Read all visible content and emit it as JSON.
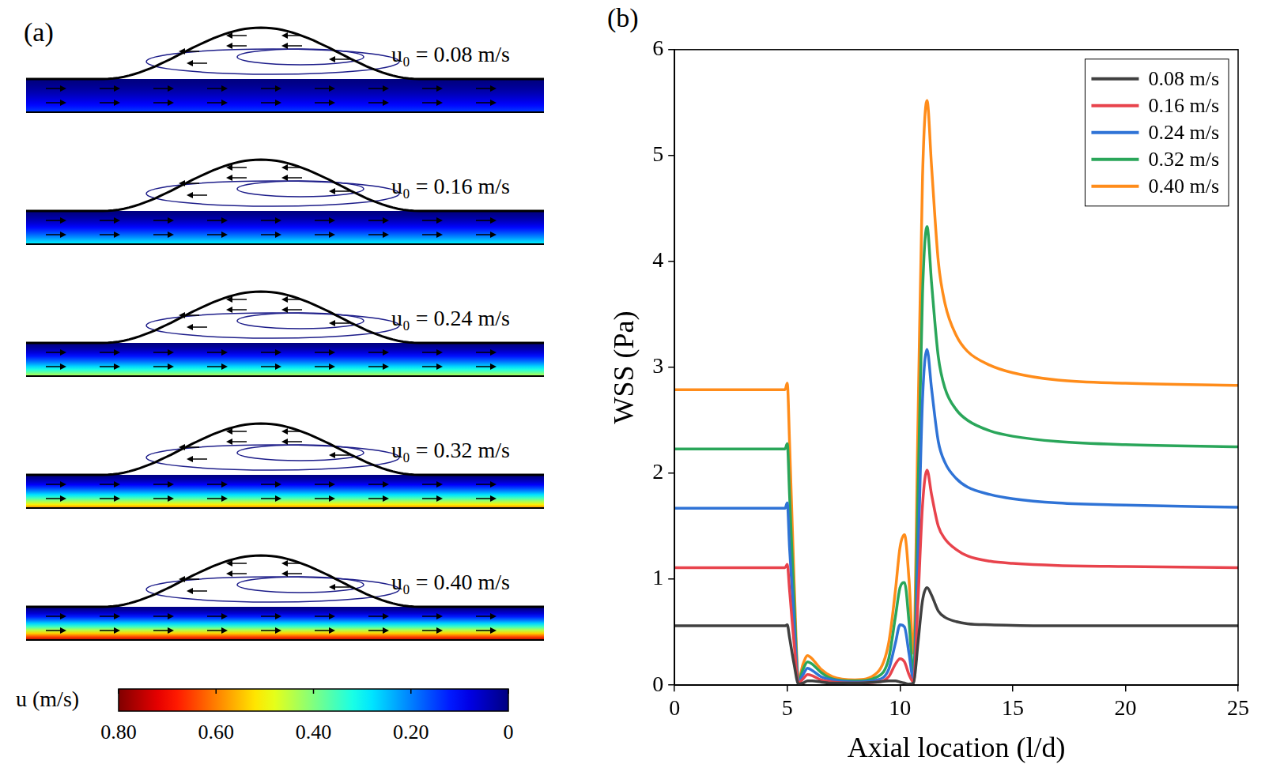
{
  "chart_data": {
    "type": "line",
    "panel": "(b)",
    "x_label": "Axial location (l/d)",
    "y_label": "WSS (Pa)",
    "x": [
      0,
      4.9,
      5.0,
      5.1,
      5.3,
      5.5,
      5.7,
      5.9,
      6.1,
      6.5,
      7,
      8,
      9,
      9.5,
      9.8,
      10.0,
      10.2,
      10.4,
      10.6,
      10.8,
      11.0,
      11.2,
      11.4,
      11.7,
      12,
      12.5,
      13,
      14,
      15,
      17,
      20,
      25
    ],
    "series": [
      {
        "name": "0.08 m/s",
        "color": "#404040",
        "values": [
          0.56,
          0.56,
          0.57,
          0.45,
          0.2,
          0.01,
          0.02,
          0.04,
          0.04,
          0.03,
          0.02,
          0.02,
          0.03,
          0.04,
          0.04,
          0.03,
          0.02,
          0.01,
          0.02,
          0.4,
          0.8,
          0.92,
          0.85,
          0.7,
          0.64,
          0.6,
          0.58,
          0.57,
          0.565,
          0.56,
          0.56,
          0.56
        ]
      },
      {
        "name": "0.16 m/s",
        "color": "#e8434c",
        "values": [
          1.11,
          1.11,
          1.14,
          0.9,
          0.4,
          0.02,
          0.06,
          0.1,
          0.09,
          0.05,
          0.03,
          0.02,
          0.03,
          0.08,
          0.2,
          0.25,
          0.22,
          0.1,
          0.03,
          0.8,
          1.7,
          2.03,
          1.8,
          1.5,
          1.38,
          1.28,
          1.22,
          1.17,
          1.15,
          1.13,
          1.12,
          1.11
        ]
      },
      {
        "name": "0.24 m/s",
        "color": "#2f73d6",
        "values": [
          1.67,
          1.67,
          1.72,
          1.3,
          0.6,
          0.03,
          0.1,
          0.16,
          0.14,
          0.08,
          0.05,
          0.03,
          0.05,
          0.15,
          0.4,
          0.57,
          0.55,
          0.3,
          0.05,
          1.2,
          2.7,
          3.17,
          2.8,
          2.3,
          2.1,
          1.95,
          1.87,
          1.8,
          1.76,
          1.72,
          1.7,
          1.68
        ]
      },
      {
        "name": "0.32 m/s",
        "color": "#2aa65a",
        "values": [
          2.23,
          2.23,
          2.28,
          1.8,
          0.8,
          0.04,
          0.15,
          0.22,
          0.2,
          0.12,
          0.06,
          0.04,
          0.08,
          0.25,
          0.65,
          0.92,
          0.97,
          0.6,
          0.1,
          1.8,
          3.7,
          4.33,
          3.8,
          3.1,
          2.8,
          2.6,
          2.5,
          2.4,
          2.35,
          2.3,
          2.27,
          2.25
        ]
      },
      {
        "name": "0.40 m/s",
        "color": "#ff8c1a",
        "values": [
          2.79,
          2.79,
          2.85,
          2.3,
          1.0,
          0.05,
          0.2,
          0.28,
          0.25,
          0.15,
          0.08,
          0.05,
          0.12,
          0.4,
          0.9,
          1.3,
          1.42,
          1.0,
          0.3,
          2.5,
          4.8,
          5.52,
          4.9,
          4.0,
          3.6,
          3.3,
          3.15,
          3.02,
          2.95,
          2.88,
          2.85,
          2.83
        ]
      }
    ],
    "xlim": [
      0,
      25
    ],
    "xticks": [
      0,
      5,
      10,
      15,
      20,
      25
    ],
    "ylim": [
      0,
      6
    ],
    "yticks": [
      0,
      1,
      2,
      3,
      4,
      5,
      6
    ],
    "grid": false,
    "legend": "upper right"
  },
  "diagram": {
    "label": "(a)",
    "cases": [
      {
        "label": "u₀ = 0.08 m/s",
        "u_max": 0.15
      },
      {
        "label": "u₀ = 0.16 m/s",
        "u_max": 0.3
      },
      {
        "label": "u₀ = 0.24 m/s",
        "u_max": 0.45
      },
      {
        "label": "u₀ = 0.32 m/s",
        "u_max": 0.6
      },
      {
        "label": "u₀ = 0.40 m/s",
        "u_max": 0.75
      }
    ],
    "colorbar": {
      "title": "u (m/s)",
      "range": [
        0,
        0.8
      ],
      "ticks": [
        {
          "value": 0.8,
          "label": "0.80"
        },
        {
          "value": 0.6,
          "label": "0.60"
        },
        {
          "value": 0.4,
          "label": "0.40"
        },
        {
          "value": 0.2,
          "label": "0.20"
        },
        0
      ]
    }
  }
}
